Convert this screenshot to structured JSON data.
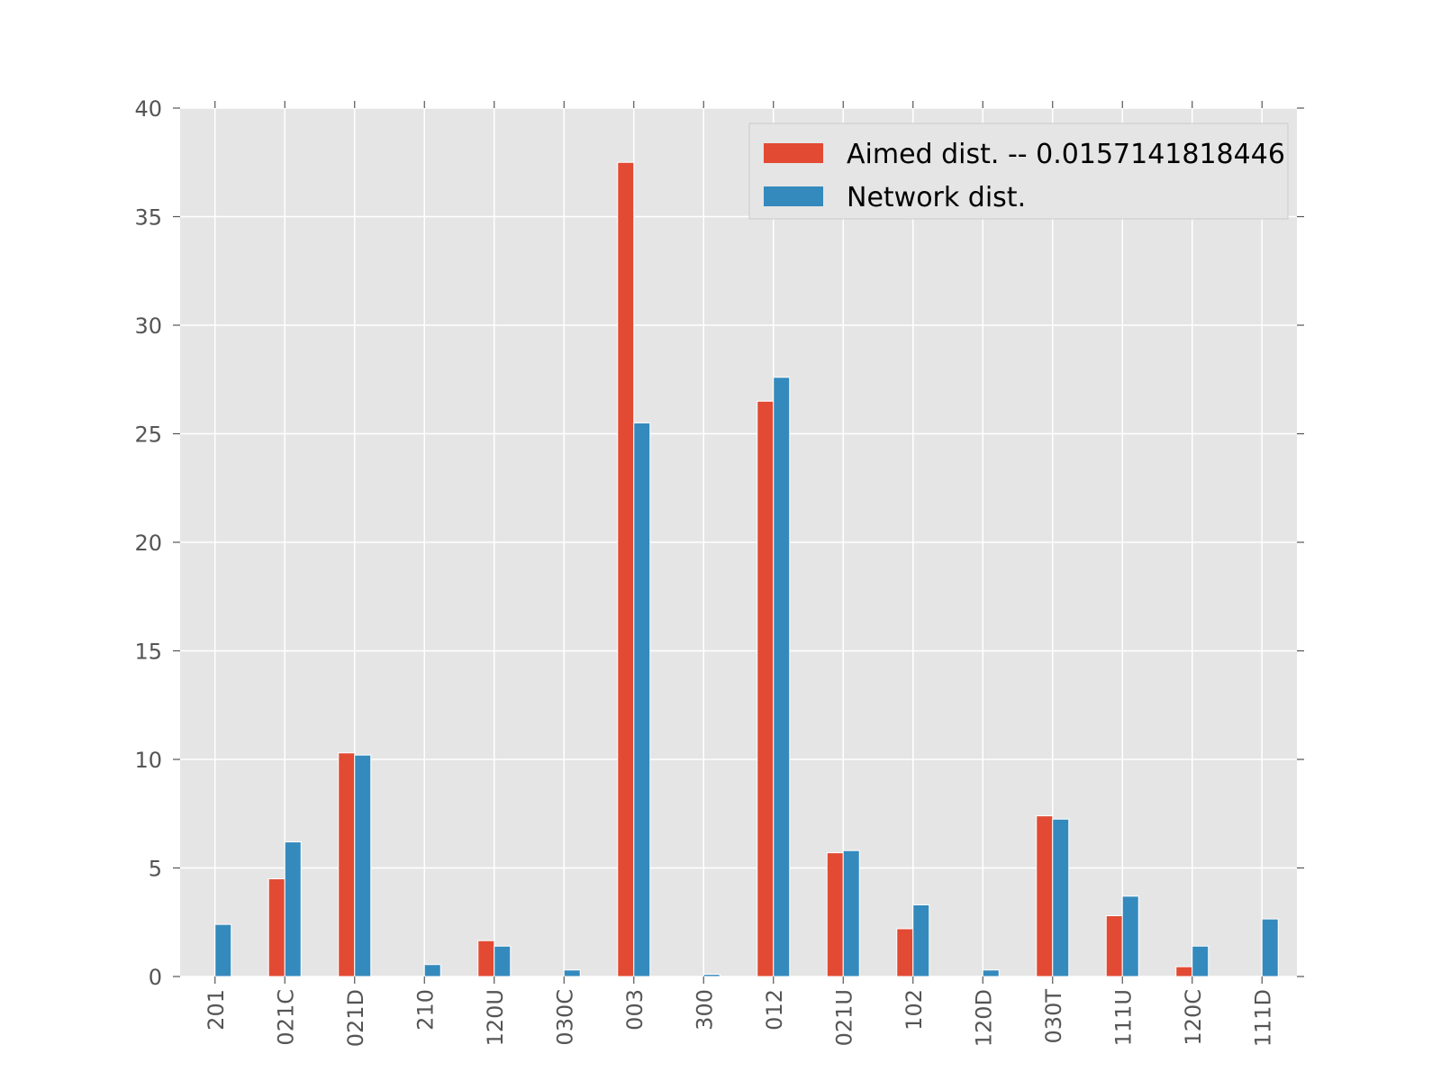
{
  "chart_data": {
    "type": "bar",
    "categories": [
      "201",
      "021C",
      "021D",
      "210",
      "120U",
      "030C",
      "003",
      "300",
      "012",
      "021U",
      "102",
      "120D",
      "030T",
      "111U",
      "120C",
      "111D"
    ],
    "series": [
      {
        "name": "Aimed dist. -- 0.0157141818446",
        "color": "#E24A33",
        "values": [
          0,
          4.5,
          10.3,
          0,
          1.65,
          0,
          37.5,
          0,
          26.5,
          5.7,
          2.2,
          0,
          7.4,
          2.8,
          0.45,
          0
        ]
      },
      {
        "name": "Network dist.",
        "color": "#348ABD",
        "values": [
          2.4,
          6.2,
          10.2,
          0.55,
          1.4,
          0.3,
          25.5,
          0.1,
          27.6,
          5.8,
          3.3,
          0.3,
          7.25,
          3.7,
          1.4,
          2.65
        ]
      }
    ],
    "yticks": [
      "0",
      "5",
      "10",
      "15",
      "20",
      "25",
      "30",
      "35",
      "40"
    ],
    "ylim": [
      0,
      40
    ],
    "grid": true,
    "legend": "top-right",
    "plot_background": "#E5E5E5",
    "grid_color": "#FFFFFF"
  }
}
